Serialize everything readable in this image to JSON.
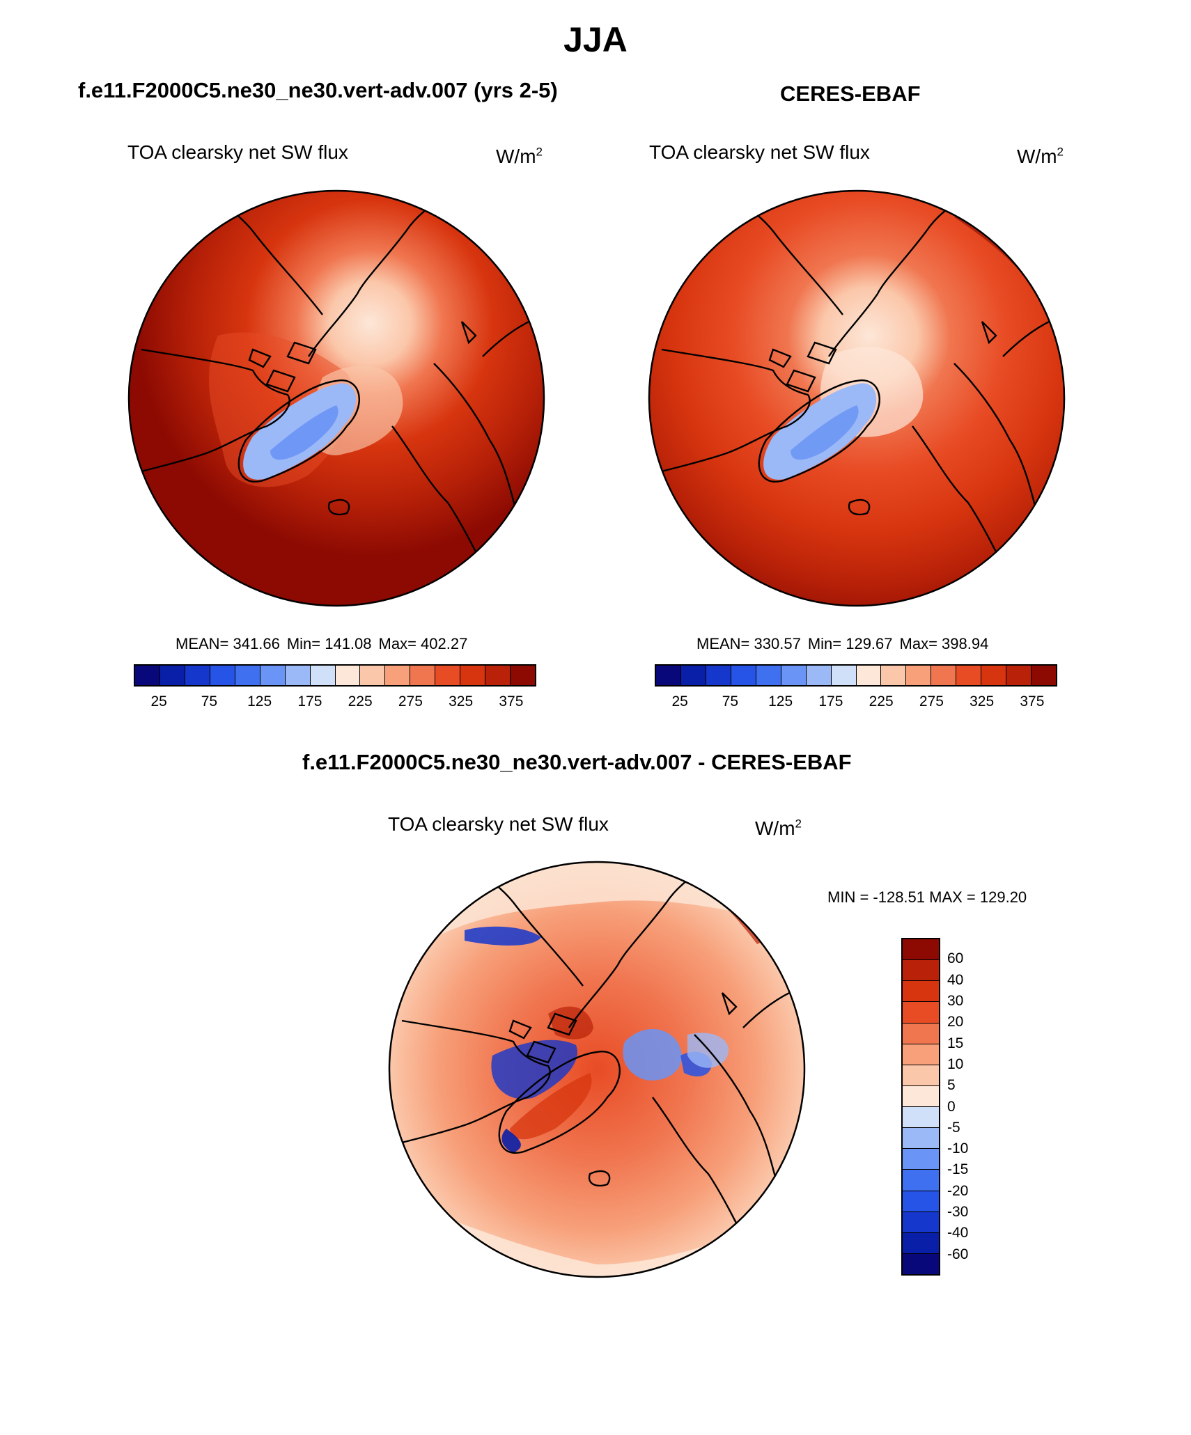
{
  "header": {
    "title": "JJA"
  },
  "panels": [
    {
      "title": "f.e11.F2000C5.ne30_ne30.vert-adv.007 (yrs 2-5)",
      "variable": "TOA clearsky net SW flux",
      "units_base": "W/m",
      "units_exp": "2",
      "stats": {
        "mean": "MEAN= 341.66",
        "min": "Min= 141.08",
        "max": "Max= 402.27"
      },
      "colorbar": {
        "colors": [
          "#08087a",
          "#0a1fa8",
          "#1537cc",
          "#2554e6",
          "#3e70f0",
          "#6a94f5",
          "#9bb8f7",
          "#cfe0f8",
          "#fde7d8",
          "#fbc7aa",
          "#f7a07a",
          "#f07650",
          "#e84c25",
          "#d7350f",
          "#b92208",
          "#8c0a02"
        ],
        "tick_labels": [
          "25",
          "75",
          "125",
          "175",
          "225",
          "275",
          "325",
          "375"
        ]
      }
    },
    {
      "title": "CERES-EBAF",
      "variable": "TOA clearsky net SW flux",
      "units_base": "W/m",
      "units_exp": "2",
      "stats": {
        "mean": "MEAN= 330.57",
        "min": "Min= 129.67",
        "max": "Max= 398.94"
      },
      "colorbar": {
        "colors": [
          "#08087a",
          "#0a1fa8",
          "#1537cc",
          "#2554e6",
          "#3e70f0",
          "#6a94f5",
          "#9bb8f7",
          "#cfe0f8",
          "#fde7d8",
          "#fbc7aa",
          "#f7a07a",
          "#f07650",
          "#e84c25",
          "#d7350f",
          "#b92208",
          "#8c0a02"
        ],
        "tick_labels": [
          "25",
          "75",
          "125",
          "175",
          "225",
          "275",
          "325",
          "375"
        ]
      }
    }
  ],
  "diff_panel": {
    "title": "f.e11.F2000C5.ne30_ne30.vert-adv.007 - CERES-EBAF",
    "variable": "TOA clearsky net SW flux",
    "units_base": "W/m",
    "units_exp": "2",
    "stats": "MIN = -128.51 MAX = 129.20",
    "colorbar": {
      "colors": [
        "#8c0a02",
        "#b92208",
        "#d7350f",
        "#e84c25",
        "#f07650",
        "#f7a07a",
        "#fbc7aa",
        "#fde7d8",
        "#cfe0f8",
        "#9bb8f7",
        "#6a94f5",
        "#3e70f0",
        "#2554e6",
        "#1537cc",
        "#0a1fa8",
        "#08087a"
      ],
      "tick_labels": [
        "60",
        "40",
        "30",
        "20",
        "15",
        "10",
        "5",
        "0",
        "-5",
        "-10",
        "-15",
        "-20",
        "-30",
        "-40",
        "-60"
      ]
    }
  }
}
